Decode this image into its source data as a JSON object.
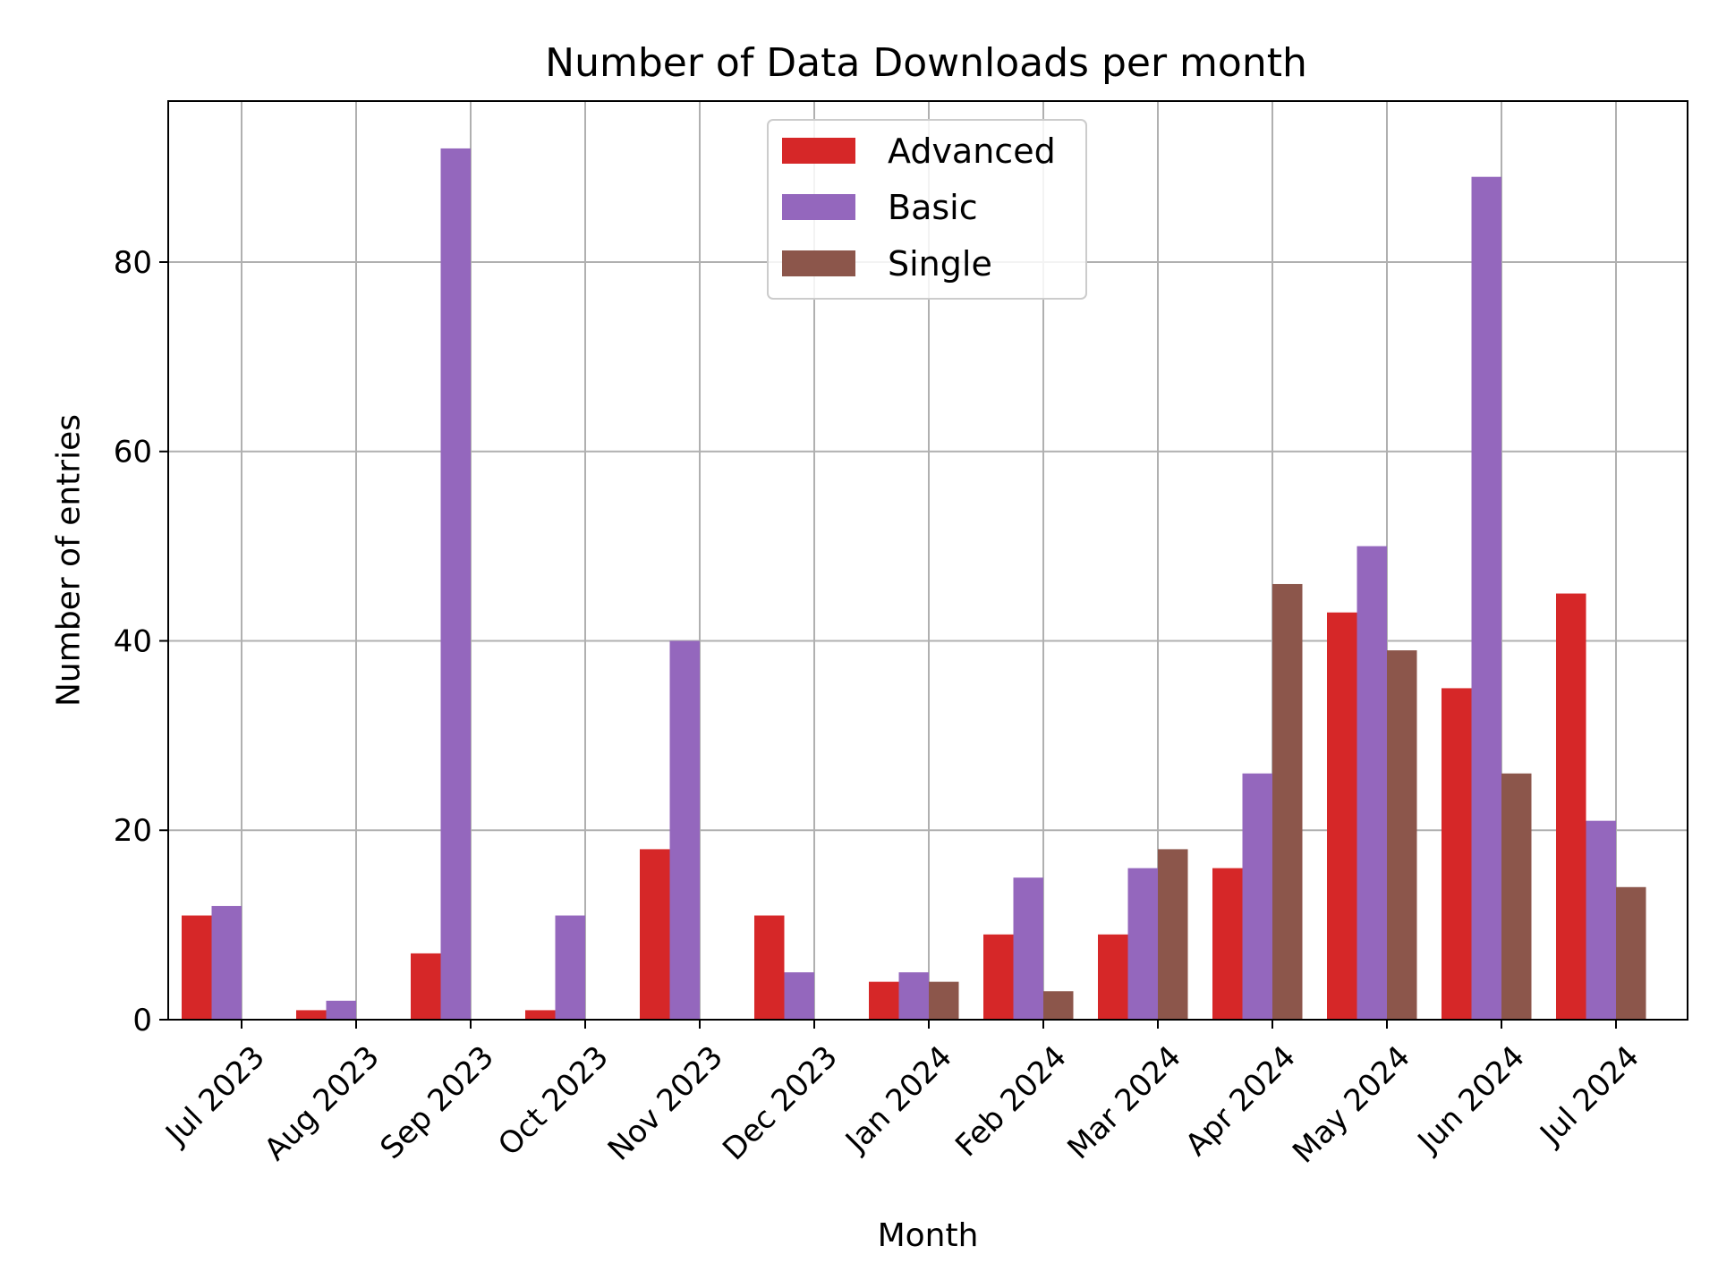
{
  "chart_data": {
    "type": "bar",
    "title": "Number of Data Downloads per month",
    "xlabel": "Month",
    "ylabel": "Number of entries",
    "categories": [
      "Jul 2023",
      "Aug 2023",
      "Sep 2023",
      "Oct 2023",
      "Nov 2023",
      "Dec 2023",
      "Jan 2024",
      "Feb 2024",
      "Mar 2024",
      "Apr 2024",
      "May 2024",
      "Jun 2024",
      "Jul 2024"
    ],
    "series": [
      {
        "name": "Advanced",
        "color": "#d62728",
        "values": [
          11,
          1,
          7,
          1,
          18,
          11,
          4,
          9,
          9,
          16,
          43,
          35,
          45
        ]
      },
      {
        "name": "Basic",
        "color": "#9467bd",
        "values": [
          12,
          2,
          92,
          11,
          40,
          5,
          5,
          15,
          16,
          26,
          50,
          89,
          21
        ]
      },
      {
        "name": "Single",
        "color": "#8c564b",
        "values": [
          0,
          0,
          0,
          0,
          0,
          0,
          4,
          3,
          18,
          46,
          39,
          26,
          14
        ]
      }
    ],
    "ylim": [
      0,
      97
    ],
    "yticks": [
      0,
      20,
      40,
      60,
      80
    ],
    "grid": true,
    "legend_position": "top-center"
  }
}
